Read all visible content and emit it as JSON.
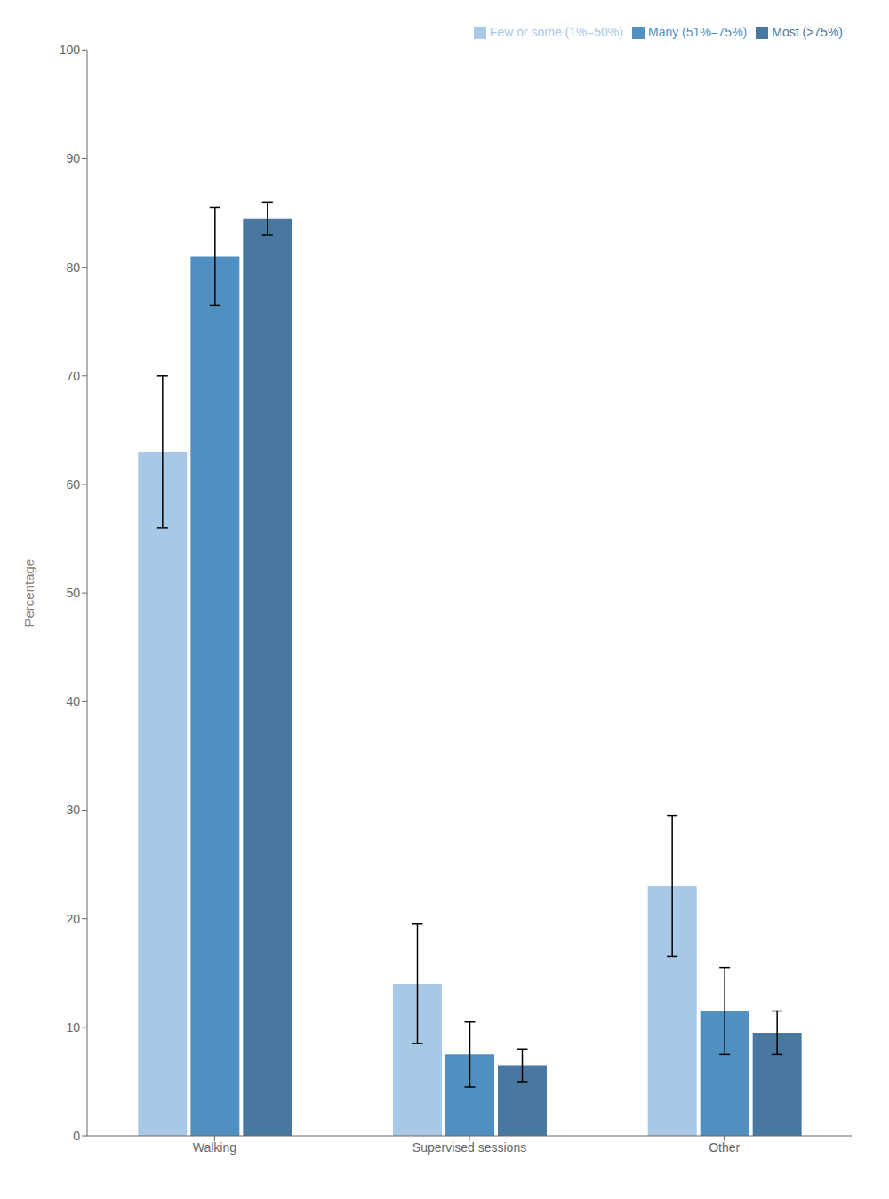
{
  "chart_data": {
    "type": "bar",
    "categories": [
      "Walking",
      "Supervised sessions",
      "Other"
    ],
    "series": [
      {
        "name": "Few or some (1%–50%)",
        "color": "#a8c8e8",
        "values": [
          63.0,
          14.0,
          23.0
        ],
        "yerr_low": [
          7.0,
          5.5,
          6.5
        ],
        "yerr_high": [
          7.0,
          5.5,
          6.5
        ]
      },
      {
        "name": "Many (51%–75%)",
        "color": "#5090c0",
        "values": [
          81.0,
          7.5,
          11.5
        ],
        "yerr_low": [
          4.5,
          3.0,
          4.0
        ],
        "yerr_high": [
          4.5,
          3.0,
          4.0
        ]
      },
      {
        "name": "Most (>75%)",
        "color": "#4878a0",
        "values": [
          84.5,
          6.5,
          9.5
        ],
        "yerr_low": [
          1.5,
          1.5,
          2.0
        ],
        "yerr_high": [
          1.5,
          1.5,
          2.0
        ]
      }
    ],
    "ylabel": "Percentage",
    "ylim": [
      0,
      100
    ],
    "yticks": [
      0,
      10,
      20,
      30,
      40,
      50,
      60,
      70,
      80,
      90,
      100
    ],
    "grid": false,
    "legend": "upper right"
  }
}
